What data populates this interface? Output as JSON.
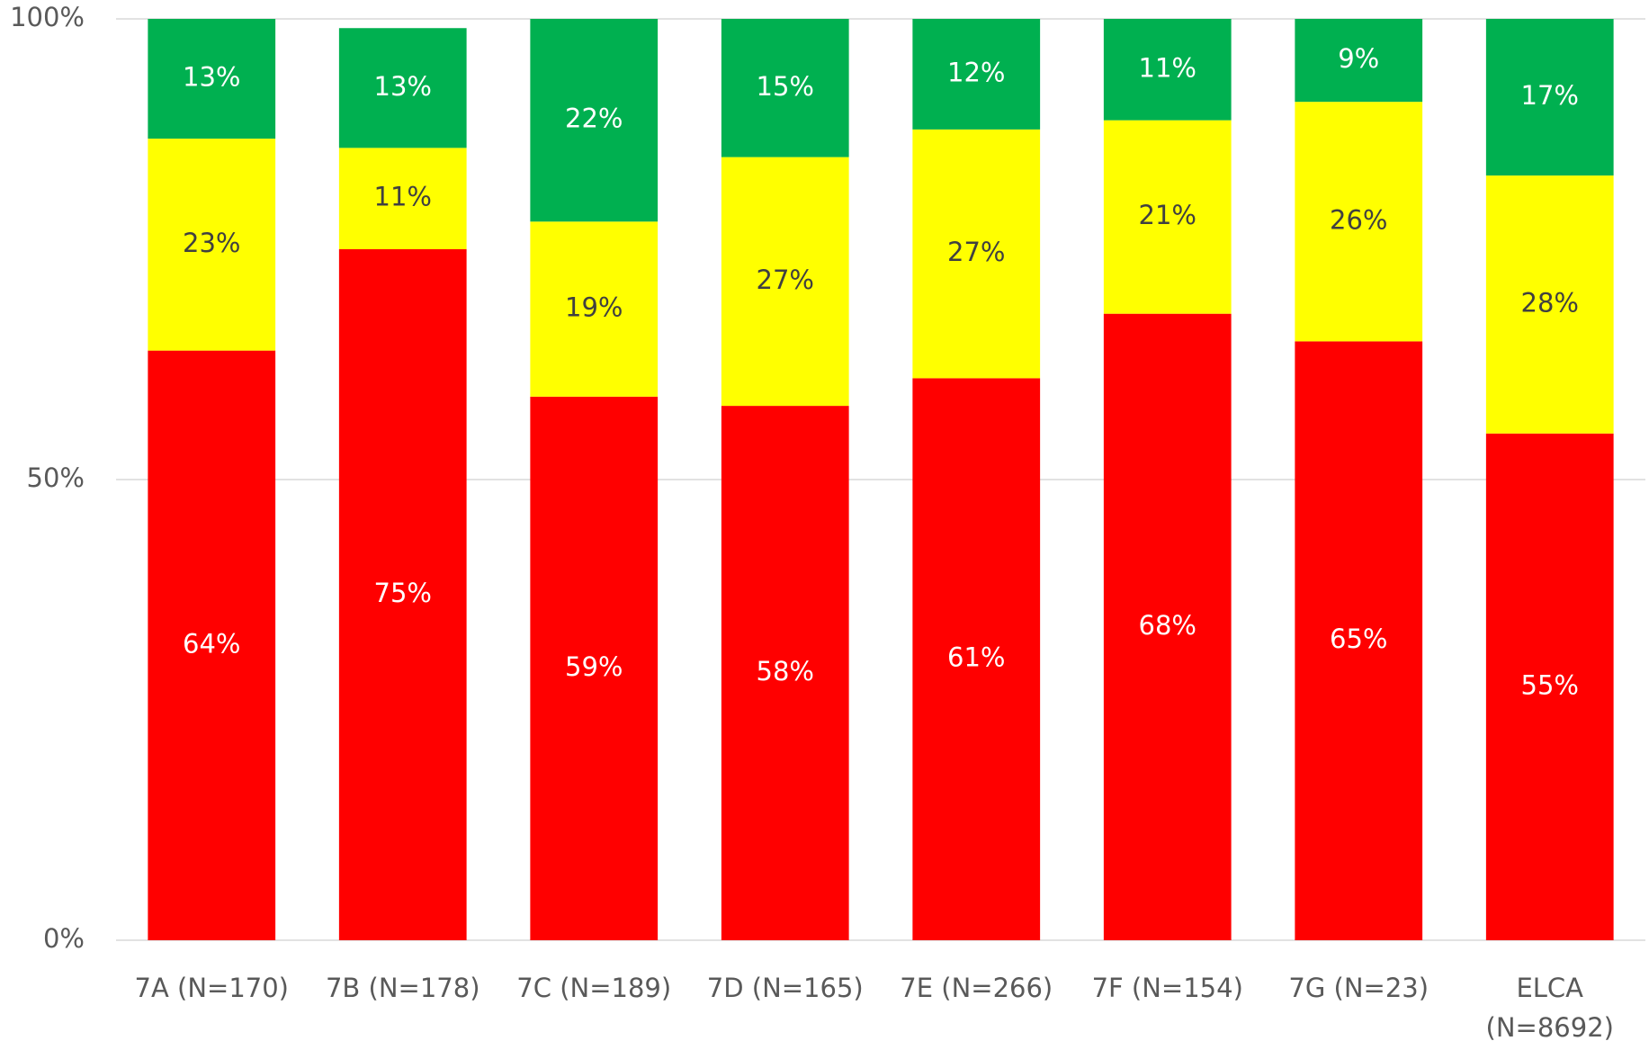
{
  "chart_data": {
    "type": "stacked-bar",
    "categories": [
      "7A (N=170)",
      "7B (N=178)",
      "7C (N=189)",
      "7D (N=165)",
      "7E (N=266)",
      "7F (N=154)",
      "7G (N=23)",
      "ELCA (N=8692)"
    ],
    "series": [
      {
        "color": "#ff0000",
        "values": [
          64,
          75,
          59,
          58,
          61,
          68,
          65,
          55
        ],
        "value_labels": [
          "64%",
          "75%",
          "59%",
          "58%",
          "61%",
          "68%",
          "65%",
          "55%"
        ]
      },
      {
        "color": "#ffff00",
        "values": [
          23,
          11,
          19,
          27,
          27,
          21,
          26,
          28
        ],
        "value_labels": [
          "23%",
          "11%",
          "19%",
          "27%",
          "27%",
          "21%",
          "26%",
          "28%"
        ]
      },
      {
        "color": "#00b050",
        "values": [
          13,
          13,
          22,
          15,
          12,
          11,
          9,
          17
        ],
        "value_labels": [
          "13%",
          "13%",
          "22%",
          "15%",
          "12%",
          "11%",
          "9%",
          "17%"
        ]
      }
    ],
    "ylim": [
      0,
      100
    ],
    "yticks": [
      {
        "value": 0,
        "label": "0%"
      },
      {
        "value": 50,
        "label": "50%"
      },
      {
        "value": 100,
        "label": "100%"
      }
    ],
    "grid": true
  }
}
